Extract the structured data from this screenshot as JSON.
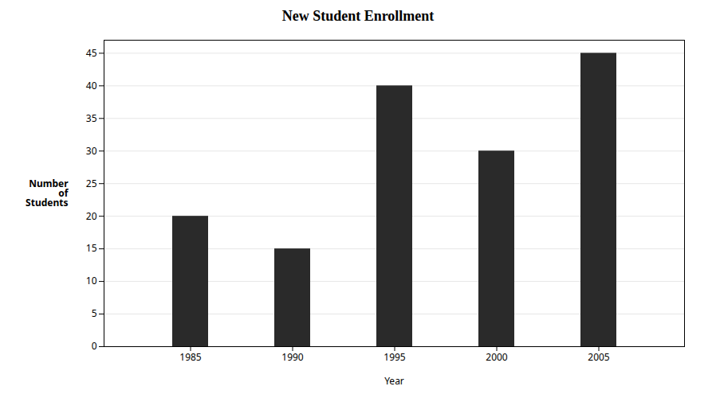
{
  "chart_data": {
    "type": "bar",
    "title": "New Student Enrollment",
    "xlabel": "Year",
    "ylabel": "Number\nof\nStudents",
    "categories": [
      "1985",
      "1990",
      "1995",
      "2000",
      "2005"
    ],
    "values": [
      20,
      15,
      40,
      30,
      45
    ],
    "color": "#2a2a2a",
    "ylim": [
      0,
      47
    ],
    "yticks": [
      0,
      5,
      10,
      15,
      20,
      25,
      30,
      35,
      40,
      45
    ],
    "grid": true
  }
}
